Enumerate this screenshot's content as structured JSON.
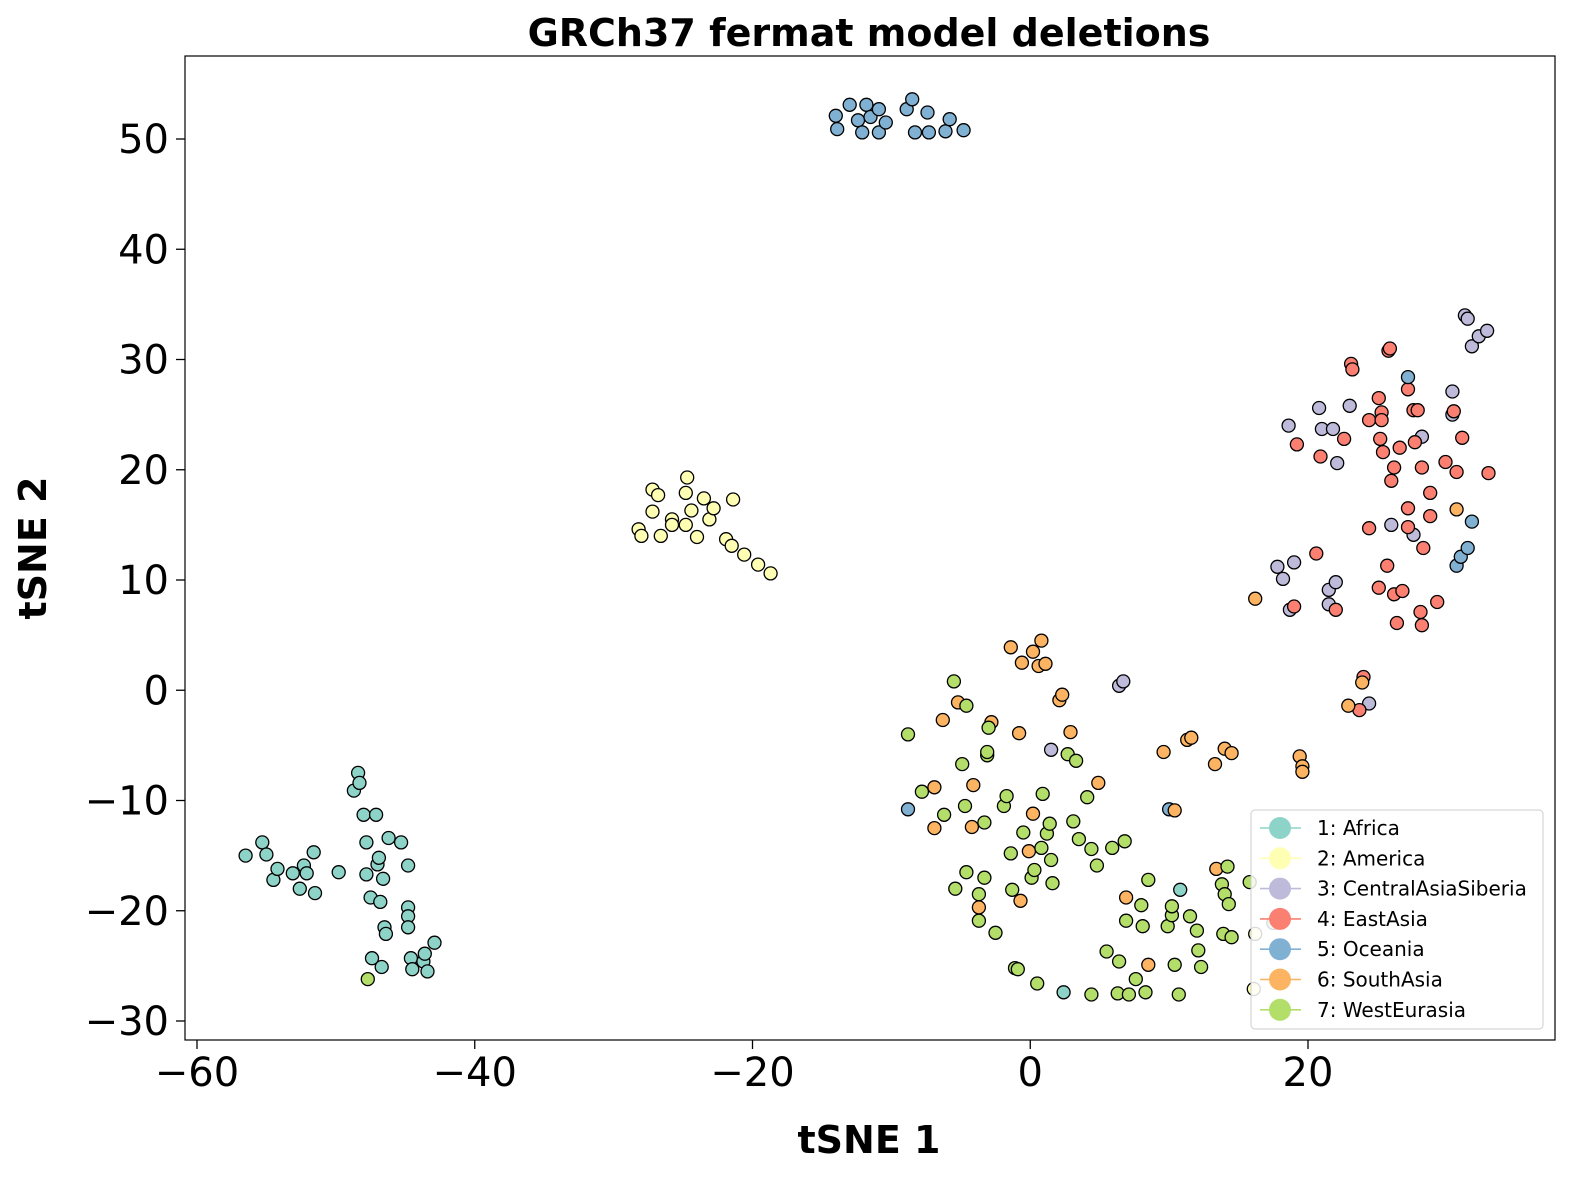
{
  "chart_data": {
    "type": "scatter",
    "title": "GRCh37 fermat model deletions",
    "xlabel": "tSNE 1",
    "ylabel": "tSNE 2",
    "xlim": [
      -61,
      38
    ],
    "ylim": [
      -32,
      57.5
    ],
    "xticks": [
      -60,
      -40,
      -20,
      0,
      20
    ],
    "yticks": [
      -30,
      -20,
      -10,
      0,
      10,
      20,
      30,
      40,
      50
    ],
    "xtick_labels": [
      "−60",
      "−40",
      "−20",
      "0",
      "20"
    ],
    "ytick_labels": [
      "−30",
      "−20",
      "−10",
      "0",
      "10",
      "20",
      "30",
      "40",
      "50"
    ],
    "grid": false,
    "legend_position": "lower-right",
    "series": [
      {
        "name": "1: Africa",
        "color": "#8dd3c7",
        "points": [
          [
            -56.5,
            -15.0
          ],
          [
            -55.3,
            -13.8
          ],
          [
            -55.0,
            -14.9
          ],
          [
            -54.5,
            -17.2
          ],
          [
            -54.2,
            -16.2
          ],
          [
            -53.1,
            -16.6
          ],
          [
            -52.6,
            -18.0
          ],
          [
            -52.3,
            -15.9
          ],
          [
            -52.1,
            -16.6
          ],
          [
            -51.6,
            -14.7
          ],
          [
            -51.5,
            -18.4
          ],
          [
            -49.8,
            -16.5
          ],
          [
            -48.7,
            -9.1
          ],
          [
            -48.4,
            -7.5
          ],
          [
            -48.3,
            -8.4
          ],
          [
            -48.0,
            -11.3
          ],
          [
            -47.8,
            -13.8
          ],
          [
            -47.8,
            -16.7
          ],
          [
            -47.5,
            -18.8
          ],
          [
            -47.4,
            -24.3
          ],
          [
            -47.1,
            -11.3
          ],
          [
            -47.0,
            -15.8
          ],
          [
            -46.9,
            -15.2
          ],
          [
            -46.8,
            -19.2
          ],
          [
            -46.7,
            -25.1
          ],
          [
            -46.6,
            -17.1
          ],
          [
            -46.5,
            -21.5
          ],
          [
            -46.4,
            -22.1
          ],
          [
            -46.2,
            -13.4
          ],
          [
            -45.3,
            -13.8
          ],
          [
            -44.8,
            -15.9
          ],
          [
            -44.8,
            -19.7
          ],
          [
            -44.8,
            -20.5
          ],
          [
            -44.8,
            -21.5
          ],
          [
            -44.6,
            -24.3
          ],
          [
            -44.5,
            -25.3
          ],
          [
            -43.7,
            -24.6
          ],
          [
            -43.6,
            -23.9
          ],
          [
            -43.4,
            -25.5
          ],
          [
            -42.9,
            -22.9
          ],
          [
            2.4,
            -27.4
          ],
          [
            10.8,
            -18.1
          ],
          [
            17.5,
            -21.1
          ]
        ]
      },
      {
        "name": "2: America",
        "color": "#ffffb3",
        "points": [
          [
            -28.2,
            14.6
          ],
          [
            -28.0,
            14.0
          ],
          [
            -27.2,
            16.2
          ],
          [
            -27.2,
            18.2
          ],
          [
            -26.8,
            17.7
          ],
          [
            -26.6,
            14.0
          ],
          [
            -25.8,
            15.5
          ],
          [
            -25.8,
            15.0
          ],
          [
            -24.8,
            15.0
          ],
          [
            -24.8,
            17.9
          ],
          [
            -24.7,
            19.3
          ],
          [
            -24.4,
            16.3
          ],
          [
            -24.0,
            13.9
          ],
          [
            -23.5,
            17.4
          ],
          [
            -23.1,
            15.5
          ],
          [
            -22.8,
            16.5
          ],
          [
            -21.9,
            13.7
          ],
          [
            -21.5,
            13.1
          ],
          [
            -21.4,
            17.3
          ],
          [
            -20.6,
            12.3
          ],
          [
            -19.6,
            11.4
          ],
          [
            -18.7,
            10.6
          ],
          [
            16.1,
            -27.1
          ],
          [
            16.2,
            -22.1
          ]
        ]
      },
      {
        "name": "3: CentralAsiaSiberia",
        "color": "#bebada",
        "points": [
          [
            1.5,
            -5.4
          ],
          [
            6.4,
            0.4
          ],
          [
            6.7,
            0.8
          ],
          [
            17.8,
            11.2
          ],
          [
            18.2,
            10.1
          ],
          [
            18.6,
            24.0
          ],
          [
            18.7,
            7.3
          ],
          [
            19.0,
            11.6
          ],
          [
            20.8,
            25.6
          ],
          [
            21.0,
            23.7
          ],
          [
            21.5,
            9.1
          ],
          [
            21.5,
            7.8
          ],
          [
            21.8,
            23.7
          ],
          [
            22.0,
            9.8
          ],
          [
            22.1,
            20.6
          ],
          [
            23.0,
            25.8
          ],
          [
            24.4,
            -1.2
          ],
          [
            26.0,
            15.0
          ],
          [
            27.6,
            14.1
          ],
          [
            28.2,
            23.0
          ],
          [
            30.4,
            27.1
          ],
          [
            30.4,
            25.0
          ],
          [
            31.3,
            34.0
          ],
          [
            31.5,
            33.7
          ],
          [
            31.8,
            31.2
          ],
          [
            32.3,
            32.1
          ],
          [
            32.9,
            32.6
          ]
        ]
      },
      {
        "name": "4: EastAsia",
        "color": "#fb8072",
        "points": [
          [
            19.0,
            7.6
          ],
          [
            19.2,
            22.3
          ],
          [
            20.6,
            12.4
          ],
          [
            20.9,
            21.2
          ],
          [
            22.0,
            7.3
          ],
          [
            22.6,
            22.8
          ],
          [
            23.1,
            29.6
          ],
          [
            23.2,
            29.1
          ],
          [
            23.7,
            -1.8
          ],
          [
            24.0,
            1.2
          ],
          [
            24.4,
            24.5
          ],
          [
            24.4,
            14.7
          ],
          [
            25.1,
            9.3
          ],
          [
            25.1,
            26.5
          ],
          [
            25.2,
            22.8
          ],
          [
            25.3,
            25.2
          ],
          [
            25.3,
            24.5
          ],
          [
            25.4,
            21.6
          ],
          [
            25.7,
            11.3
          ],
          [
            25.8,
            30.8
          ],
          [
            25.9,
            31.0
          ],
          [
            26.0,
            19.0
          ],
          [
            26.2,
            8.7
          ],
          [
            26.2,
            20.2
          ],
          [
            26.4,
            6.1
          ],
          [
            26.6,
            22.0
          ],
          [
            26.8,
            9.0
          ],
          [
            27.2,
            14.8
          ],
          [
            27.2,
            16.5
          ],
          [
            27.2,
            27.3
          ],
          [
            27.6,
            25.4
          ],
          [
            27.7,
            22.5
          ],
          [
            27.9,
            25.4
          ],
          [
            28.1,
            7.1
          ],
          [
            28.2,
            20.2
          ],
          [
            28.2,
            5.9
          ],
          [
            28.3,
            12.9
          ],
          [
            28.8,
            17.9
          ],
          [
            28.8,
            15.8
          ],
          [
            29.3,
            8.0
          ],
          [
            29.9,
            20.7
          ],
          [
            30.5,
            25.3
          ],
          [
            30.7,
            19.8
          ],
          [
            31.1,
            22.9
          ],
          [
            33.0,
            19.7
          ]
        ]
      },
      {
        "name": "5: Oceania",
        "color": "#80b1d3",
        "points": [
          [
            -14.0,
            52.1
          ],
          [
            -13.9,
            50.9
          ],
          [
            -13.0,
            53.1
          ],
          [
            -12.4,
            51.7
          ],
          [
            -12.1,
            50.6
          ],
          [
            -11.8,
            53.1
          ],
          [
            -11.5,
            52.0
          ],
          [
            -10.9,
            52.7
          ],
          [
            -10.9,
            50.6
          ],
          [
            -10.4,
            51.5
          ],
          [
            -8.9,
            52.7
          ],
          [
            -8.5,
            53.6
          ],
          [
            -8.3,
            50.6
          ],
          [
            -7.4,
            52.4
          ],
          [
            -7.3,
            50.6
          ],
          [
            -6.1,
            50.7
          ],
          [
            -5.8,
            51.8
          ],
          [
            -4.8,
            50.8
          ],
          [
            -8.8,
            -10.8
          ],
          [
            10.0,
            -10.8
          ],
          [
            27.2,
            28.4
          ],
          [
            30.7,
            11.3
          ],
          [
            31.0,
            12.1
          ],
          [
            31.5,
            12.9
          ],
          [
            31.8,
            15.3
          ]
        ]
      },
      {
        "name": "6: SouthAsia",
        "color": "#fdb462",
        "points": [
          [
            -6.9,
            -12.5
          ],
          [
            -6.9,
            -8.8
          ],
          [
            -6.3,
            -2.7
          ],
          [
            -5.2,
            -1.1
          ],
          [
            -4.2,
            -12.4
          ],
          [
            -4.1,
            -8.6
          ],
          [
            -3.7,
            -19.7
          ],
          [
            -2.8,
            -2.9
          ],
          [
            -1.4,
            3.9
          ],
          [
            -0.8,
            -3.9
          ],
          [
            -0.7,
            -19.1
          ],
          [
            -0.6,
            2.5
          ],
          [
            -0.1,
            -14.6
          ],
          [
            0.2,
            3.5
          ],
          [
            0.2,
            -11.2
          ],
          [
            0.6,
            2.2
          ],
          [
            0.8,
            4.5
          ],
          [
            1.1,
            2.4
          ],
          [
            2.1,
            -0.9
          ],
          [
            2.3,
            -0.4
          ],
          [
            2.9,
            -3.8
          ],
          [
            4.9,
            -8.4
          ],
          [
            6.9,
            -18.8
          ],
          [
            8.5,
            -24.9
          ],
          [
            9.6,
            -5.6
          ],
          [
            10.4,
            -10.9
          ],
          [
            11.3,
            -4.5
          ],
          [
            11.6,
            -4.3
          ],
          [
            13.3,
            -6.7
          ],
          [
            13.4,
            -16.2
          ],
          [
            14.0,
            -5.3
          ],
          [
            14.5,
            -5.7
          ],
          [
            16.2,
            8.3
          ],
          [
            19.4,
            -6.0
          ],
          [
            19.6,
            -6.9
          ],
          [
            19.6,
            -7.4
          ],
          [
            22.9,
            -1.4
          ],
          [
            23.9,
            0.7
          ],
          [
            30.7,
            16.4
          ]
        ]
      },
      {
        "name": "7: WestEurasia",
        "color": "#b3de69",
        "points": [
          [
            -47.7,
            -26.2
          ],
          [
            -8.8,
            -4.0
          ],
          [
            -7.8,
            -9.2
          ],
          [
            -6.2,
            -11.3
          ],
          [
            -5.5,
            0.8
          ],
          [
            -5.4,
            -18.0
          ],
          [
            -4.9,
            -6.7
          ],
          [
            -4.7,
            -10.5
          ],
          [
            -4.6,
            -1.4
          ],
          [
            -4.6,
            -16.5
          ],
          [
            -3.7,
            -18.5
          ],
          [
            -3.7,
            -20.9
          ],
          [
            -3.3,
            -12.0
          ],
          [
            -3.3,
            -17.0
          ],
          [
            -3.1,
            -5.9
          ],
          [
            -3.1,
            -5.6
          ],
          [
            -3.0,
            -3.4
          ],
          [
            -2.5,
            -22.0
          ],
          [
            -1.9,
            -10.5
          ],
          [
            -1.7,
            -9.6
          ],
          [
            -1.4,
            -14.8
          ],
          [
            -1.3,
            -18.1
          ],
          [
            -1.1,
            -25.2
          ],
          [
            -0.9,
            -25.3
          ],
          [
            -0.5,
            -12.9
          ],
          [
            0.1,
            -17.0
          ],
          [
            0.3,
            -16.3
          ],
          [
            0.8,
            -14.3
          ],
          [
            0.9,
            -9.4
          ],
          [
            1.2,
            -13.0
          ],
          [
            1.4,
            -12.1
          ],
          [
            1.5,
            -15.4
          ],
          [
            1.6,
            -17.5
          ],
          [
            2.7,
            -5.8
          ],
          [
            3.1,
            -11.9
          ],
          [
            3.3,
            -6.4
          ],
          [
            3.5,
            -13.5
          ],
          [
            4.1,
            -9.7
          ],
          [
            4.4,
            -14.4
          ],
          [
            4.8,
            -15.9
          ],
          [
            5.5,
            -23.7
          ],
          [
            5.9,
            -14.3
          ],
          [
            6.3,
            -27.5
          ],
          [
            6.4,
            -24.6
          ],
          [
            6.8,
            -13.7
          ],
          [
            6.9,
            -20.9
          ],
          [
            7.1,
            -27.6
          ],
          [
            7.6,
            -26.2
          ],
          [
            8.0,
            -19.5
          ],
          [
            8.1,
            -21.4
          ],
          [
            8.3,
            -27.4
          ],
          [
            8.5,
            -17.2
          ],
          [
            9.9,
            -21.4
          ],
          [
            10.2,
            -20.4
          ],
          [
            10.2,
            -19.6
          ],
          [
            10.4,
            -24.9
          ],
          [
            10.7,
            -27.6
          ],
          [
            11.5,
            -20.5
          ],
          [
            12.0,
            -21.8
          ],
          [
            12.1,
            -23.6
          ],
          [
            12.3,
            -25.1
          ],
          [
            13.8,
            -17.6
          ],
          [
            13.9,
            -22.1
          ],
          [
            14.0,
            -18.5
          ],
          [
            14.2,
            -16.0
          ],
          [
            14.3,
            -19.4
          ],
          [
            14.5,
            -22.4
          ],
          [
            15.8,
            -17.4
          ],
          [
            0.5,
            -26.6
          ],
          [
            4.4,
            -27.6
          ]
        ]
      }
    ]
  }
}
